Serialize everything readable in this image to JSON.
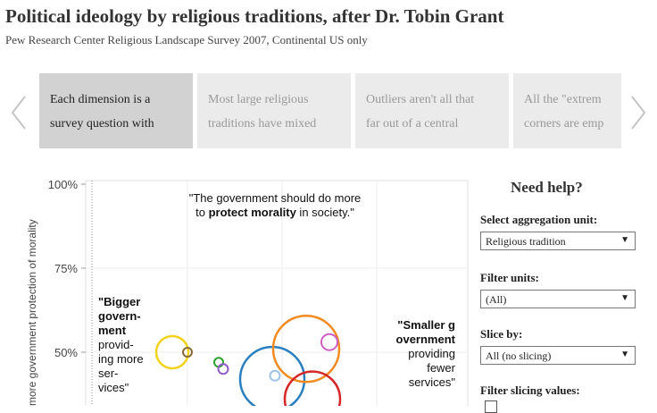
{
  "header": {
    "title": "Political ideology by religious traditions, after Dr. Tobin Grant",
    "subtitle": "Pew Research Center Religious Landscape Survey 2007, Continental US only"
  },
  "carousel": {
    "cards": [
      {
        "lines": [
          "Each dimension is a",
          "survey question with"
        ]
      },
      {
        "lines": [
          "Most large religious",
          "traditions have mixed"
        ]
      },
      {
        "lines": [
          "Outliers aren't all that",
          "far out of a central"
        ]
      },
      {
        "lines": [
          "All the \"extrem",
          "corners are emp"
        ]
      }
    ]
  },
  "chart_data": {
    "type": "scatter",
    "ylabel": "more government protection of morality",
    "yticks": [
      "100%",
      "75%",
      "50%"
    ],
    "ylim": [
      0.35,
      1.0
    ],
    "annotations": {
      "top_line1": "\"The government should do more",
      "top_line2_pre": "to ",
      "top_line2_bold": "protect morality",
      "top_line2_post": " in society.\"",
      "left_bold": [
        "\"Bigger",
        "govern-",
        "ment"
      ],
      "left_plain": [
        "provid-",
        "ing more",
        "ser-",
        "vices\""
      ],
      "right_bold": [
        "\"Smaller g",
        "overnment"
      ],
      "right_plain": [
        "providing",
        "fewer",
        "services\""
      ]
    },
    "points": [
      {
        "y": 0.5,
        "color": "#f2d21a"
      },
      {
        "y": 0.5,
        "color": "#8b6a3a"
      },
      {
        "y": 0.47,
        "color": "#2ca02c"
      },
      {
        "y": 0.45,
        "color": "#8e5bc7"
      },
      {
        "y": 0.42,
        "color": "#2a7fc0"
      },
      {
        "y": 0.43,
        "color": "#9ec3ea"
      },
      {
        "y": 0.51,
        "color": "#f28a1f"
      },
      {
        "y": 0.53,
        "color": "#cc5fc4"
      },
      {
        "y": 0.36,
        "color": "#d62728"
      }
    ]
  },
  "panel": {
    "help": "Need help?",
    "aggregation_label": "Select aggregation unit:",
    "aggregation_value": "Religious tradition",
    "filter_label": "Filter units:",
    "filter_value": "(All)",
    "slice_label": "Slice by:",
    "slice_value": "All (no slicing)",
    "filter_slicing_label": "Filter slicing values:"
  },
  "icons": {
    "prev": "chevron-left-icon",
    "next": "chevron-right-icon",
    "caret": "caret-down-icon"
  }
}
